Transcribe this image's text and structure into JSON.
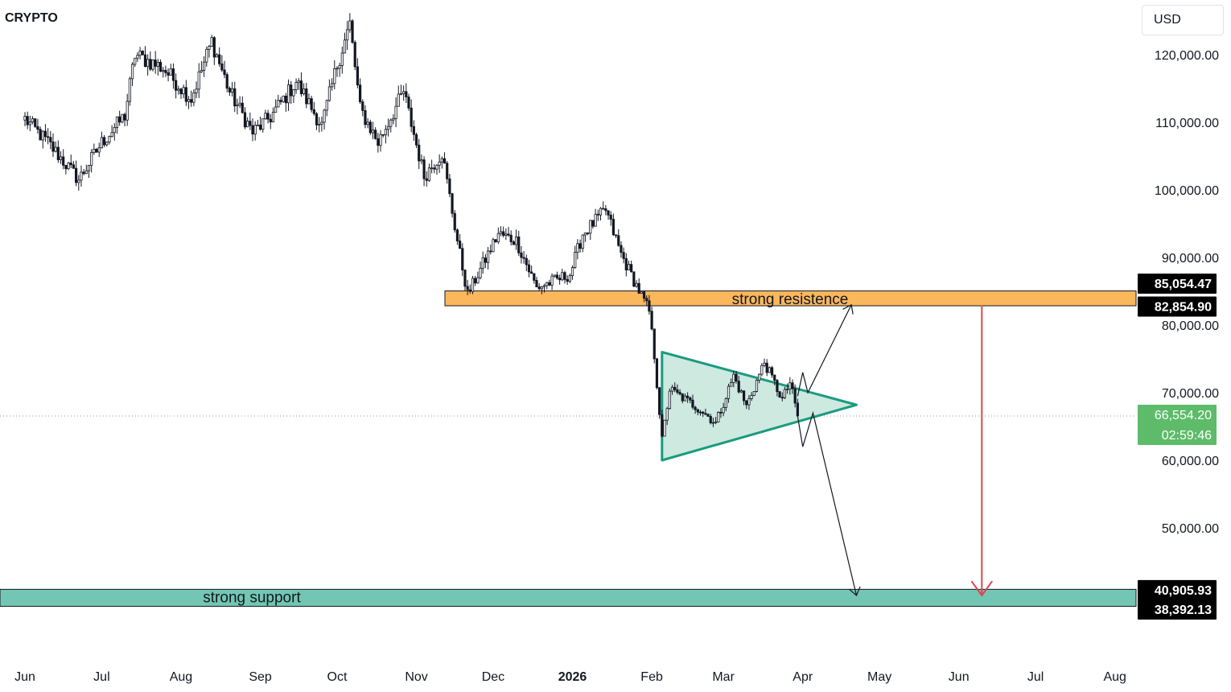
{
  "symbol": "CRYPTO",
  "currency": "USD",
  "colors": {
    "candle": "#131722",
    "resistance_band": "#fbb75c",
    "support_band": "#73c6b4",
    "triangle_fill": "#cde9e0",
    "triangle_stroke": "#1a9b7f",
    "target_arrow": "#e0444f",
    "projection_arrows": "#131722",
    "last_price_badge": "#5dbb69",
    "level_badge": "#000000"
  },
  "chart_data": {
    "type": "candlestick",
    "title": "",
    "price_axis": {
      "side": "right",
      "ticks": [
        "120,000.00",
        "110,000.00",
        "100,000.00",
        "90,000.00",
        "80,000.00",
        "70,000.00",
        "60,000.00",
        "50,000.00"
      ],
      "tick_values": [
        120000,
        110000,
        100000,
        90000,
        80000,
        70000,
        60000,
        50000
      ]
    },
    "time_axis": {
      "labels": [
        "Jun",
        "Jul",
        "Aug",
        "Sep",
        "Oct",
        "Nov",
        "Dec",
        "2026",
        "Feb",
        "Mar",
        "Apr",
        "May",
        "Jun",
        "Jul",
        "Aug"
      ],
      "bold_labels": [
        "2026"
      ]
    },
    "price_path": {
      "description_points_date_close": [
        [
          "2025-06-01",
          110500
        ],
        [
          "2025-06-10",
          107000
        ],
        [
          "2025-06-22",
          101500
        ],
        [
          "2025-07-01",
          107000
        ],
        [
          "2025-07-10",
          111000
        ],
        [
          "2025-07-14",
          120000
        ],
        [
          "2025-07-25",
          118000
        ],
        [
          "2025-08-05",
          113500
        ],
        [
          "2025-08-13",
          122000
        ],
        [
          "2025-08-20",
          114500
        ],
        [
          "2025-08-29",
          108500
        ],
        [
          "2025-09-05",
          110800
        ],
        [
          "2025-09-15",
          116000
        ],
        [
          "2025-09-25",
          109500
        ],
        [
          "2025-10-01",
          118500
        ],
        [
          "2025-10-06",
          124500
        ],
        [
          "2025-10-10",
          112000
        ],
        [
          "2025-10-17",
          107000
        ],
        [
          "2025-10-27",
          114500
        ],
        [
          "2025-11-04",
          102000
        ],
        [
          "2025-11-11",
          105500
        ],
        [
          "2025-11-17",
          92500
        ],
        [
          "2025-11-21",
          84500
        ],
        [
          "2025-12-03",
          93500
        ],
        [
          "2025-12-10",
          92500
        ],
        [
          "2025-12-18",
          85500
        ],
        [
          "2025-12-31",
          87500
        ],
        [
          "2026-01-05",
          93500
        ],
        [
          "2026-01-14",
          97000
        ],
        [
          "2026-01-20",
          90500
        ],
        [
          "2026-01-31",
          82000
        ],
        [
          "2026-02-02",
          75500
        ],
        [
          "2026-02-05",
          63000
        ],
        [
          "2026-02-08",
          70500
        ],
        [
          "2026-02-20",
          67500
        ],
        [
          "2026-02-26",
          65500
        ],
        [
          "2026-03-05",
          72500
        ],
        [
          "2026-03-10",
          68000
        ],
        [
          "2026-03-17",
          74500
        ],
        [
          "2026-03-24",
          69000
        ],
        [
          "2026-03-27",
          71500
        ],
        [
          "2026-03-30",
          66554
        ]
      ]
    },
    "last_price": {
      "value": "66,554.20",
      "countdown": "02:59:46",
      "numeric": 66554.2
    },
    "zones": [
      {
        "name": "strong resistence",
        "top": 85054.47,
        "bottom": 82854.9,
        "top_label": "85,054.47",
        "bottom_label": "82,854.90"
      },
      {
        "name": "strong support",
        "top": 40905.93,
        "bottom": 38392.13,
        "top_label": "40,905.93",
        "bottom_label": "38,392.13"
      }
    ],
    "patterns": [
      {
        "type": "symmetrical triangle",
        "vertices": [
          [
            "2026-02-05",
            76000
          ],
          [
            "2026-02-05",
            60000
          ],
          [
            "2026-04-22",
            68200
          ]
        ]
      }
    ],
    "projections": [
      {
        "type": "breakout up",
        "points": [
          [
            "2026-03-30",
            69500
          ],
          [
            "2026-04-01",
            73000
          ],
          [
            "2026-04-03",
            70000
          ],
          [
            "2026-04-20",
            83000
          ]
        ]
      },
      {
        "type": "breakdown",
        "points": [
          [
            "2026-03-30",
            66500
          ],
          [
            "2026-04-01",
            62000
          ],
          [
            "2026-04-05",
            67000
          ],
          [
            "2026-04-22",
            40000
          ]
        ]
      },
      {
        "type": "target drop",
        "points": [
          [
            "2026-06-10",
            82900
          ],
          [
            "2026-06-10",
            40000
          ]
        ]
      }
    ],
    "grid": false,
    "legend": "none"
  }
}
